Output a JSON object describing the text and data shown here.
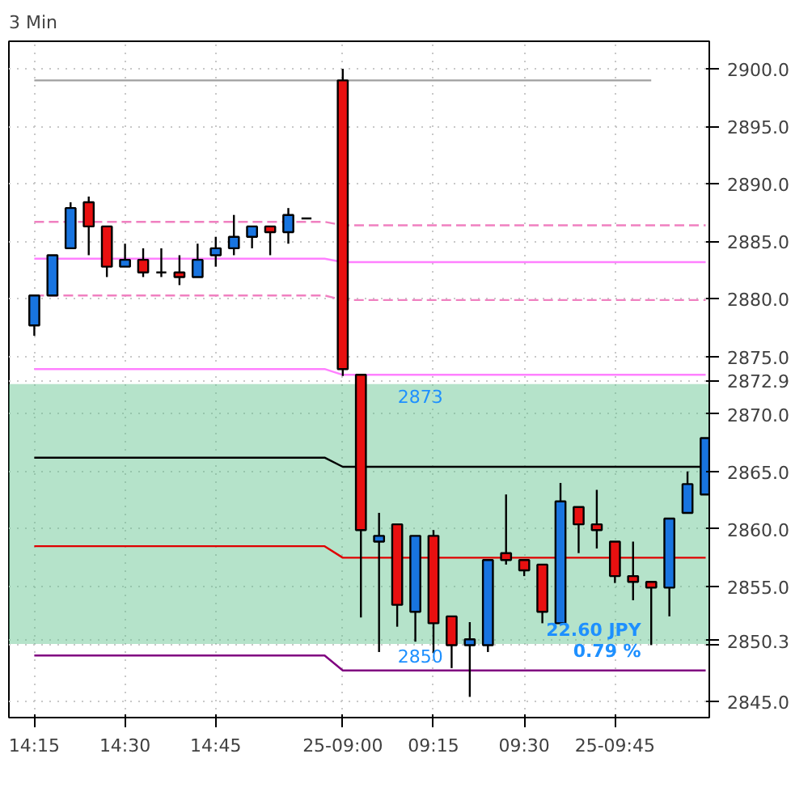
{
  "chart_data": {
    "type": "candlestick",
    "title": "3 Min",
    "categories": [
      "14:15",
      null,
      null,
      null,
      null,
      "14:30",
      null,
      null,
      null,
      null,
      "14:45",
      null,
      null,
      null,
      null,
      null,
      null,
      "25-09:00",
      null,
      null,
      null,
      null,
      "09:15",
      null,
      null,
      null,
      null,
      "09:30",
      null,
      null,
      null,
      null,
      "25-09:45",
      null,
      null,
      null,
      null,
      null
    ],
    "ohlc": [
      [
        2877.7,
        2880.3,
        2876.8,
        2880.3
      ],
      [
        2880.3,
        2883.8,
        2880.3,
        2883.8
      ],
      [
        2884.4,
        2888.4,
        2884.4,
        2887.9
      ],
      [
        2888.4,
        2888.9,
        2883.8,
        2886.3
      ],
      [
        2886.3,
        2886.3,
        2881.9,
        2882.8
      ],
      [
        2882.8,
        2884.8,
        2882.8,
        2883.4
      ],
      [
        2883.4,
        2884.4,
        2881.9,
        2882.3
      ],
      [
        2882.3,
        2884.4,
        2881.9,
        2882.3
      ],
      [
        2882.3,
        2883.8,
        2881.2,
        2881.9
      ],
      [
        2881.9,
        2884.8,
        2881.9,
        2883.4
      ],
      [
        2883.8,
        2885.4,
        2882.8,
        2884.4
      ],
      [
        2884.4,
        2887.3,
        2883.8,
        2885.4
      ],
      [
        2885.4,
        2886.3,
        2884.4,
        2886.3
      ],
      [
        2886.3,
        2886.3,
        2883.8,
        2885.8
      ],
      [
        2885.8,
        2887.9,
        2884.8,
        2887.3
      ],
      [
        2887.0,
        2887.0,
        2887.0,
        2887.0
      ],
      null,
      [
        2899.0,
        2900.0,
        2873.3,
        2873.9
      ],
      [
        2873.4,
        2873.4,
        2852.3,
        2859.9
      ],
      [
        2858.9,
        2861.4,
        2849.3,
        2859.4
      ],
      [
        2860.4,
        2860.4,
        2851.5,
        2853.4
      ],
      [
        2852.8,
        2859.4,
        2850.2,
        2859.4
      ],
      [
        2859.4,
        2859.9,
        2849.2,
        2851.8
      ],
      [
        2852.4,
        2852.4,
        2847.9,
        2849.9
      ],
      [
        2849.9,
        2851.9,
        2845.4,
        2850.4
      ],
      [
        2849.9,
        2857.3,
        2849.3,
        2857.3
      ],
      [
        2857.9,
        2863.0,
        2856.9,
        2857.3
      ],
      [
        2857.3,
        2857.3,
        2855.9,
        2856.4
      ],
      [
        2856.9,
        2856.9,
        2851.8,
        2852.8
      ],
      [
        2851.8,
        2864.0,
        2851.8,
        2862.4
      ],
      [
        2861.9,
        2861.9,
        2857.9,
        2860.4
      ],
      [
        2860.4,
        2863.4,
        2858.3,
        2859.9
      ],
      [
        2858.9,
        2858.9,
        2855.3,
        2855.9
      ],
      [
        2855.9,
        2858.9,
        2853.8,
        2855.4
      ],
      [
        2855.4,
        2855.4,
        2849.9,
        2854.9
      ],
      [
        2854.9,
        2860.9,
        2852.4,
        2860.9
      ],
      [
        2861.4,
        2865.0,
        2861.4,
        2863.9
      ],
      [
        2863.0,
        2867.9,
        2863.0,
        2867.9
      ]
    ],
    "colors": [
      "#1874e0",
      "#1874e0",
      "#1874e0",
      "#e81010",
      "#e81010",
      "#1874e0",
      "#e81010",
      "#000000",
      "#e81010",
      "#1874e0",
      "#1874e0",
      "#1874e0",
      "#1874e0",
      "#e81010",
      "#1874e0",
      "#000000",
      null,
      "#e81010",
      "#e81010",
      "#1874e0",
      "#e81010",
      "#1874e0",
      "#e81010",
      "#e81010",
      "#1874e0",
      "#1874e0",
      "#e81010",
      "#e81010",
      "#e81010",
      "#1874e0",
      "#e81010",
      "#e81010",
      "#e81010",
      "#e81010",
      "#e81010",
      "#1874e0",
      "#1874e0",
      "#1874e0"
    ],
    "series": [
      {
        "type": "line",
        "color": "#a0a0a0",
        "values": [
          2899.0,
          2899.0,
          2899.0,
          2899.0,
          2899.0,
          2899.0,
          2899.0,
          2899.0,
          2899.0,
          2899.0,
          2899.0,
          2899.0,
          2899.0,
          2899.0,
          2899.0,
          2899.0,
          2899.0,
          2899.0,
          2899.0,
          2899.0,
          2899.0,
          2899.0,
          2899.0,
          2899.0,
          2899.0,
          2899.0,
          2899.0,
          2899.0,
          2899.0,
          2899.0,
          2899.0,
          2899.0,
          2899.0,
          2899.0,
          2899.0,
          null,
          null,
          null
        ]
      },
      {
        "type": "line",
        "color": "#f080c0",
        "line_style": "dashed",
        "values": [
          2886.7,
          2886.7,
          2886.7,
          2886.7,
          2886.7,
          2886.7,
          2886.7,
          2886.7,
          2886.7,
          2886.7,
          2886.7,
          2886.7,
          2886.7,
          2886.7,
          2886.7,
          2886.7,
          2886.7,
          2886.4,
          2886.4,
          2886.4,
          2886.4,
          2886.4,
          2886.4,
          2886.4,
          2886.4,
          2886.4,
          2886.4,
          2886.4,
          2886.4,
          2886.4,
          2886.4,
          2886.4,
          2886.4,
          2886.4,
          2886.4,
          2886.4,
          2886.4,
          2886.4
        ]
      },
      {
        "type": "line",
        "color": "#ff80ff",
        "values": [
          2883.5,
          2883.5,
          2883.5,
          2883.5,
          2883.5,
          2883.5,
          2883.5,
          2883.5,
          2883.5,
          2883.5,
          2883.5,
          2883.5,
          2883.5,
          2883.5,
          2883.5,
          2883.5,
          2883.5,
          2883.2,
          2883.2,
          2883.2,
          2883.2,
          2883.2,
          2883.2,
          2883.2,
          2883.2,
          2883.2,
          2883.2,
          2883.2,
          2883.2,
          2883.2,
          2883.2,
          2883.2,
          2883.2,
          2883.2,
          2883.2,
          2883.2,
          2883.2,
          2883.2
        ]
      },
      {
        "type": "line",
        "color": "#f080c0",
        "line_style": "dashed",
        "values": [
          2880.3,
          2880.3,
          2880.3,
          2880.3,
          2880.3,
          2880.3,
          2880.3,
          2880.3,
          2880.3,
          2880.3,
          2880.3,
          2880.3,
          2880.3,
          2880.3,
          2880.3,
          2880.3,
          2880.3,
          2879.9,
          2879.9,
          2879.9,
          2879.9,
          2879.9,
          2879.9,
          2879.9,
          2879.9,
          2879.9,
          2879.9,
          2879.9,
          2879.9,
          2879.9,
          2879.9,
          2879.9,
          2879.9,
          2879.9,
          2879.9,
          2879.9,
          2879.9,
          2879.9
        ]
      },
      {
        "type": "line",
        "color": "#ff80ff",
        "values": [
          2873.9,
          2873.9,
          2873.9,
          2873.9,
          2873.9,
          2873.9,
          2873.9,
          2873.9,
          2873.9,
          2873.9,
          2873.9,
          2873.9,
          2873.9,
          2873.9,
          2873.9,
          2873.9,
          2873.9,
          2873.4,
          2873.4,
          2873.4,
          2873.4,
          2873.4,
          2873.4,
          2873.4,
          2873.4,
          2873.4,
          2873.4,
          2873.4,
          2873.4,
          2873.4,
          2873.4,
          2873.4,
          2873.4,
          2873.4,
          2873.4,
          2873.4,
          2873.4,
          2873.4
        ]
      },
      {
        "type": "line",
        "color": "#000000",
        "values": [
          2866.2,
          2866.2,
          2866.2,
          2866.2,
          2866.2,
          2866.2,
          2866.2,
          2866.2,
          2866.2,
          2866.2,
          2866.2,
          2866.2,
          2866.2,
          2866.2,
          2866.2,
          2866.2,
          2866.2,
          2865.4,
          2865.4,
          2865.4,
          2865.4,
          2865.4,
          2865.4,
          2865.4,
          2865.4,
          2865.4,
          2865.4,
          2865.4,
          2865.4,
          2865.4,
          2865.4,
          2865.4,
          2865.4,
          2865.4,
          2865.4,
          2865.4,
          2865.4,
          2865.4
        ]
      },
      {
        "type": "line",
        "color": "#e00000",
        "values": [
          2858.5,
          2858.5,
          2858.5,
          2858.5,
          2858.5,
          2858.5,
          2858.5,
          2858.5,
          2858.5,
          2858.5,
          2858.5,
          2858.5,
          2858.5,
          2858.5,
          2858.5,
          2858.5,
          2858.5,
          2857.5,
          2857.5,
          2857.5,
          2857.5,
          2857.5,
          2857.5,
          2857.5,
          2857.5,
          2857.5,
          2857.5,
          2857.5,
          2857.5,
          2857.5,
          2857.5,
          2857.5,
          2857.5,
          2857.5,
          2857.5,
          2857.5,
          2857.5,
          2857.5
        ]
      },
      {
        "type": "line",
        "color": "#800080",
        "values": [
          2849.0,
          2849.0,
          2849.0,
          2849.0,
          2849.0,
          2849.0,
          2849.0,
          2849.0,
          2849.0,
          2849.0,
          2849.0,
          2849.0,
          2849.0,
          2849.0,
          2849.0,
          2849.0,
          2849.0,
          2847.7,
          2847.7,
          2847.7,
          2847.7,
          2847.7,
          2847.7,
          2847.7,
          2847.7,
          2847.7,
          2847.7,
          2847.7,
          2847.7,
          2847.7,
          2847.7,
          2847.7,
          2847.7,
          2847.7,
          2847.7,
          2847.7,
          2847.7,
          2847.7
        ]
      }
    ],
    "bands": [
      {
        "axis": "y",
        "from": 2850,
        "to": 2872.6,
        "color": "#5cc08a"
      }
    ],
    "annotations": [
      {
        "text": "2873",
        "y": 2872.6
      },
      {
        "text": "2850",
        "y": 2850
      },
      "22.60 JPY",
      "0.79 %"
    ],
    "ylim": [
      2843.6,
      2902.4
    ],
    "yticks": [
      {
        "value": 2845,
        "label": "2845.0"
      },
      {
        "value": 2850,
        "label": null
      },
      {
        "value": 2850.3,
        "label": "2850.3"
      },
      {
        "value": 2855,
        "label": "2855.0"
      },
      {
        "value": 2860,
        "label": "2860.0"
      },
      {
        "value": 2865,
        "label": "2865.0"
      },
      {
        "value": 2870,
        "label": "2870.0"
      },
      {
        "value": 2872.9,
        "label": "2872.9"
      },
      {
        "value": 2875,
        "label": "2875.0"
      },
      {
        "value": 2880,
        "label": "2880.0"
      },
      {
        "value": 2885,
        "label": "2885.0"
      },
      {
        "value": 2890,
        "label": "2890.0"
      },
      {
        "value": 2895,
        "label": "2895.0"
      },
      {
        "value": 2900,
        "label": "2900.0"
      }
    ],
    "grid": true
  }
}
